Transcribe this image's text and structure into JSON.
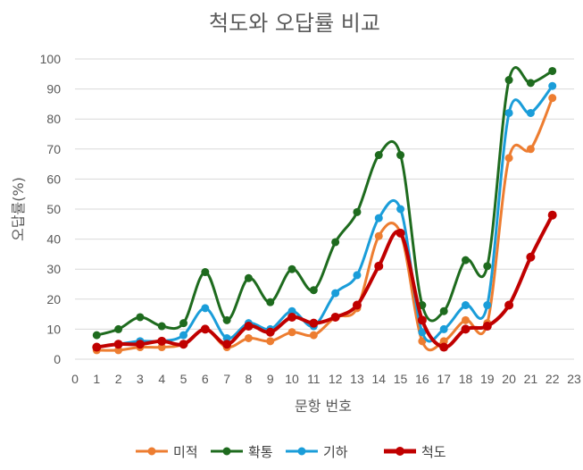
{
  "chart_data": {
    "type": "line",
    "title": "척도와 오답률 비교",
    "xlabel": "문항 번호",
    "ylabel": "오답률(%)",
    "xlim": [
      0,
      23
    ],
    "ylim": [
      0,
      100
    ],
    "xticks": [
      0,
      1,
      2,
      3,
      4,
      5,
      6,
      7,
      8,
      9,
      10,
      11,
      12,
      13,
      14,
      15,
      16,
      17,
      18,
      19,
      20,
      21,
      22,
      23
    ],
    "yticks": [
      0,
      10,
      20,
      30,
      40,
      50,
      60,
      70,
      80,
      90,
      100
    ],
    "grid": "horizontal",
    "legend_position": "bottom",
    "x": [
      1,
      2,
      3,
      4,
      5,
      6,
      7,
      8,
      9,
      10,
      11,
      12,
      13,
      14,
      15,
      16,
      17,
      18,
      19,
      20,
      21,
      22
    ],
    "series": [
      {
        "name": "미적",
        "color": "#ed7d31",
        "values": [
          3,
          3,
          4,
          4,
          5,
          10,
          4,
          7,
          6,
          9,
          8,
          14,
          17,
          41,
          42,
          6,
          6,
          13,
          12,
          67,
          70,
          87
        ]
      },
      {
        "name": "확통",
        "color": "#1e6b1e",
        "values": [
          8,
          10,
          14,
          11,
          12,
          29,
          13,
          27,
          19,
          30,
          23,
          39,
          49,
          68,
          68,
          18,
          16,
          33,
          31,
          93,
          92,
          96
        ]
      },
      {
        "name": "기하",
        "color": "#1a9dd9",
        "values": [
          4,
          5,
          6,
          6,
          8,
          17,
          7,
          12,
          10,
          16,
          11,
          22,
          28,
          47,
          50,
          9,
          10,
          18,
          18,
          82,
          82,
          91
        ]
      },
      {
        "name": "척도",
        "color": "#c00000",
        "values": [
          4,
          5,
          5,
          6,
          5,
          10,
          5,
          11,
          9,
          14,
          12,
          14,
          18,
          31,
          42,
          13,
          4,
          10,
          11,
          18,
          34,
          48
        ]
      }
    ]
  }
}
